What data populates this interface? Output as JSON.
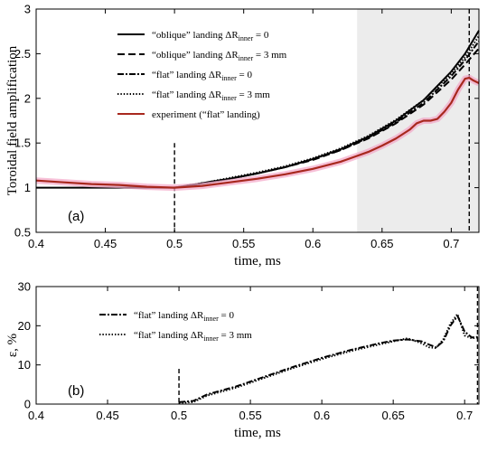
{
  "chart_data": [
    {
      "type": "line",
      "panel_label": "(a)",
      "xlabel": "time, ms",
      "ylabel": "Toroidal field amplification",
      "xlim": [
        0.4,
        0.72
      ],
      "ylim": [
        0.5,
        3
      ],
      "xticks": [
        "0.4",
        "0.45",
        "0.5",
        "0.55",
        "0.6",
        "0.65",
        "0.7"
      ],
      "xtick_values": [
        0.4,
        0.45,
        0.5,
        0.55,
        0.6,
        0.65,
        0.7
      ],
      "yticks": [
        "0.5",
        "1",
        "1.5",
        "2",
        "2.5",
        "3"
      ],
      "ytick_values": [
        0.5,
        1,
        1.5,
        2,
        2.5,
        3
      ],
      "grid": false,
      "legend_position": "top-right",
      "shaded_region": [
        0.632,
        0.72
      ],
      "vlines": [
        0.5,
        0.713
      ],
      "series": [
        {
          "name": "“oblique” landing ΔR_inner = 0",
          "style": "solid",
          "color": "#000000",
          "x": [
            0.4,
            0.5,
            0.52,
            0.54,
            0.56,
            0.58,
            0.6,
            0.62,
            0.64,
            0.66,
            0.68,
            0.7,
            0.71,
            0.72
          ],
          "y": [
            1.0,
            1.0,
            1.05,
            1.1,
            1.16,
            1.23,
            1.32,
            1.43,
            1.57,
            1.75,
            1.98,
            2.3,
            2.5,
            2.76
          ]
        },
        {
          "name": "“oblique” landing ΔR_inner = 3 mm",
          "style": "dashed",
          "color": "#000000",
          "x": [
            0.5,
            0.52,
            0.54,
            0.56,
            0.58,
            0.6,
            0.62,
            0.64,
            0.66,
            0.68,
            0.7,
            0.71,
            0.72
          ],
          "y": [
            1.0,
            1.05,
            1.1,
            1.16,
            1.23,
            1.31,
            1.42,
            1.55,
            1.72,
            1.93,
            2.21,
            2.38,
            2.56
          ]
        },
        {
          "name": "“flat” landing ΔR_inner = 0",
          "style": "dashdot",
          "color": "#000000",
          "x": [
            0.5,
            0.52,
            0.54,
            0.56,
            0.58,
            0.6,
            0.62,
            0.64,
            0.66,
            0.68,
            0.7,
            0.71,
            0.72
          ],
          "y": [
            1.0,
            1.05,
            1.1,
            1.16,
            1.23,
            1.32,
            1.42,
            1.56,
            1.73,
            1.95,
            2.25,
            2.43,
            2.64
          ]
        },
        {
          "name": "“flat” landing ΔR_inner = 3 mm",
          "style": "dotted",
          "color": "#000000",
          "x": [
            0.5,
            0.52,
            0.54,
            0.56,
            0.58,
            0.6,
            0.62,
            0.64,
            0.66,
            0.68,
            0.7,
            0.71,
            0.72
          ],
          "y": [
            1.0,
            1.05,
            1.11,
            1.17,
            1.24,
            1.33,
            1.44,
            1.58,
            1.76,
            1.98,
            2.28,
            2.46,
            2.7
          ]
        },
        {
          "name": "experiment (“flat” landing)",
          "style": "solid",
          "color": "#a8281e",
          "glow": "#f4a6c8",
          "x": [
            0.4,
            0.42,
            0.44,
            0.46,
            0.48,
            0.5,
            0.52,
            0.54,
            0.56,
            0.58,
            0.6,
            0.62,
            0.64,
            0.65,
            0.66,
            0.67,
            0.675,
            0.68,
            0.685,
            0.69,
            0.695,
            0.7,
            0.705,
            0.71,
            0.713,
            0.716,
            0.72
          ],
          "y": [
            1.08,
            1.06,
            1.04,
            1.03,
            1.01,
            1.0,
            1.02,
            1.06,
            1.1,
            1.15,
            1.21,
            1.29,
            1.4,
            1.47,
            1.55,
            1.65,
            1.72,
            1.75,
            1.75,
            1.77,
            1.85,
            1.95,
            2.1,
            2.22,
            2.23,
            2.2,
            2.17
          ]
        }
      ]
    },
    {
      "type": "line",
      "panel_label": "(b)",
      "xlabel": "time, ms",
      "ylabel": "ε, %",
      "xlim": [
        0.4,
        0.71
      ],
      "ylim": [
        0,
        30
      ],
      "xticks": [
        "0.4",
        "0.45",
        "0.5",
        "0.55",
        "0.6",
        "0.65",
        "0.7"
      ],
      "xtick_values": [
        0.4,
        0.45,
        0.5,
        0.55,
        0.6,
        0.65,
        0.7
      ],
      "yticks": [
        "0",
        "10",
        "20",
        "30"
      ],
      "ytick_values": [
        0,
        10,
        20,
        30
      ],
      "grid": false,
      "legend_position": "top-left",
      "vlines": [
        0.5,
        0.709
      ],
      "series": [
        {
          "name": "“flat” landing ΔR_inner = 0",
          "style": "dashdot",
          "color": "#000000",
          "x": [
            0.5,
            0.51,
            0.52,
            0.54,
            0.56,
            0.58,
            0.6,
            0.62,
            0.64,
            0.65,
            0.66,
            0.67,
            0.675,
            0.68,
            0.685,
            0.69,
            0.695,
            0.7,
            0.705,
            0.71
          ],
          "y": [
            0.5,
            0.8,
            2.5,
            4.5,
            7.0,
            9.5,
            11.8,
            13.8,
            15.5,
            16.2,
            16.5,
            16.0,
            15.2,
            14.5,
            16.0,
            20.0,
            22.5,
            18.5,
            17.0,
            17.2
          ]
        },
        {
          "name": "“flat” landing ΔR_inner = 3 mm",
          "style": "dotted",
          "color": "#000000",
          "x": [
            0.5,
            0.51,
            0.52,
            0.54,
            0.56,
            0.58,
            0.6,
            0.62,
            0.64,
            0.65,
            0.66,
            0.67,
            0.675,
            0.68,
            0.685,
            0.69,
            0.695,
            0.7,
            0.705,
            0.71
          ],
          "y": [
            0.3,
            0.5,
            2.2,
            4.2,
            6.7,
            9.2,
            11.5,
            13.5,
            15.2,
            16.0,
            16.8,
            15.5,
            14.5,
            14.3,
            16.5,
            20.5,
            23.0,
            17.5,
            16.8,
            17.0
          ]
        }
      ]
    }
  ]
}
